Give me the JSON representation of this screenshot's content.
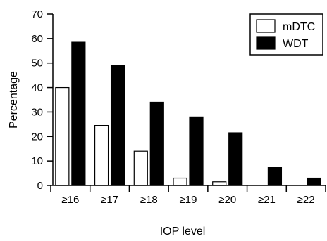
{
  "chart_data": {
    "type": "bar",
    "title": "",
    "xlabel": "IOP level",
    "ylabel": "Percentage",
    "ylim": [
      0,
      70
    ],
    "yticks": [
      0,
      10,
      20,
      30,
      40,
      50,
      60,
      70
    ],
    "categories": [
      "≥16",
      "≥17",
      "≥18",
      "≥19",
      "≥20",
      "≥21",
      "≥22"
    ],
    "series": [
      {
        "name": "mDTC",
        "color": "#ffffff",
        "values": [
          40,
          24.5,
          14,
          3,
          1.5,
          0,
          0
        ]
      },
      {
        "name": "WDT",
        "color": "#000000",
        "values": [
          58.5,
          49,
          34,
          28,
          21.5,
          7.5,
          3
        ]
      }
    ],
    "legend": "top-right",
    "grid": false
  }
}
